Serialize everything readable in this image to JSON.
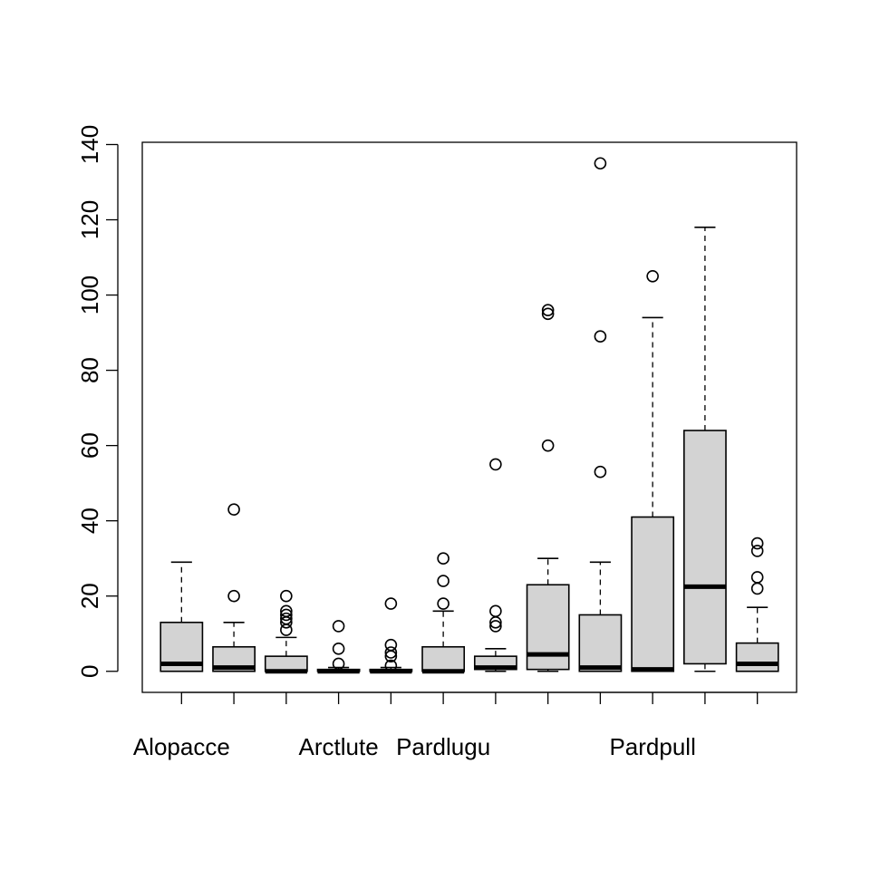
{
  "chart_data": {
    "type": "box",
    "title": "",
    "xlabel": "",
    "ylabel": "",
    "ylim": [
      -5.6,
      140.6
    ],
    "yticks": [
      0,
      20,
      40,
      60,
      80,
      100,
      120,
      140
    ],
    "tick_labels_shown": [
      "Alopacce",
      "Arctlute",
      "Pardlugu",
      "Pardpull"
    ],
    "label_positions": [
      1,
      4,
      6,
      10
    ],
    "boxes": [
      {
        "pos": 1,
        "min": 0,
        "q1": 0,
        "median": 2,
        "q3": 13,
        "max": 29,
        "outliers": []
      },
      {
        "pos": 2,
        "min": 0,
        "q1": 0,
        "median": 1,
        "q3": 6.5,
        "max": 13,
        "outliers": [
          20,
          43
        ]
      },
      {
        "pos": 3,
        "min": 0,
        "q1": 0,
        "median": 0,
        "q3": 4,
        "max": 9,
        "outliers": [
          11,
          13,
          14,
          15,
          16,
          20
        ]
      },
      {
        "pos": 4,
        "min": 0,
        "q1": 0,
        "median": 0,
        "q3": 0.5,
        "max": 1,
        "outliers": [
          2,
          6,
          12
        ]
      },
      {
        "pos": 5,
        "min": 0,
        "q1": 0,
        "median": 0,
        "q3": 0.5,
        "max": 1,
        "outliers": [
          1.5,
          4,
          5,
          7,
          18
        ]
      },
      {
        "pos": 6,
        "min": 0,
        "q1": 0,
        "median": 0,
        "q3": 6.5,
        "max": 16,
        "outliers": [
          18,
          24,
          30
        ]
      },
      {
        "pos": 7,
        "min": 0,
        "q1": 0.5,
        "median": 1,
        "q3": 4,
        "max": 6,
        "outliers": [
          12,
          13,
          16,
          55
        ]
      },
      {
        "pos": 8,
        "min": 0,
        "q1": 0.5,
        "median": 4.5,
        "q3": 23,
        "max": 30,
        "outliers": [
          60,
          95,
          96
        ]
      },
      {
        "pos": 9,
        "min": 0,
        "q1": 0,
        "median": 1,
        "q3": 15,
        "max": 29,
        "outliers": [
          53,
          89,
          135
        ]
      },
      {
        "pos": 10,
        "min": 0,
        "q1": 0,
        "median": 0.5,
        "q3": 41,
        "max": 94,
        "outliers": [
          105
        ]
      },
      {
        "pos": 11,
        "min": 0,
        "q1": 2,
        "median": 22.5,
        "q3": 64,
        "max": 118,
        "outliers": []
      },
      {
        "pos": 12,
        "min": 0,
        "q1": 0,
        "median": 2,
        "q3": 7.5,
        "max": 17,
        "outliers": [
          22,
          25,
          32,
          34
        ]
      }
    ]
  }
}
